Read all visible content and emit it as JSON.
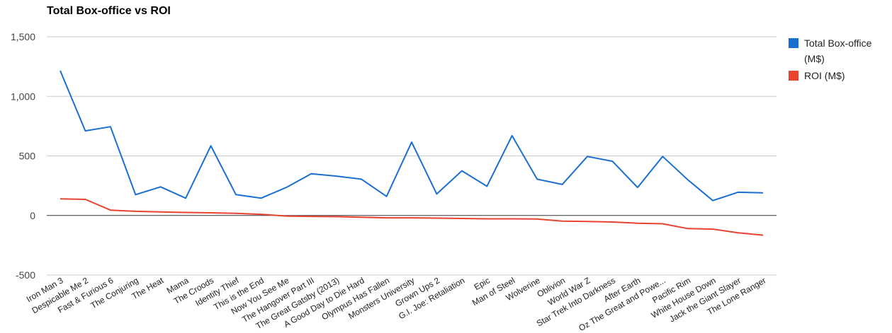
{
  "chart_data": {
    "type": "line",
    "title": "Total Box-office vs ROI",
    "xlabel": "",
    "ylabel": "",
    "ylim": [
      -500,
      1500
    ],
    "yticks": [
      -500,
      0,
      500,
      1000,
      1500
    ],
    "ytick_labels": [
      "-500",
      "0",
      "500",
      "1,000",
      "1,500"
    ],
    "grid": true,
    "legend_position": "right",
    "categories": [
      "Iron Man 3",
      "Despicable Me 2",
      "Fast & Furious 6",
      "The Conjuring",
      "The Heat",
      "Mama",
      "The Croods",
      "Identity Thief",
      "This is the End",
      "Now You See Me",
      "The Hangover Part III",
      "The Great Gatsby (2013)",
      "A Good Day to Die Hard",
      "Olympus Has Fallen",
      "Monsters University",
      "Grown Ups 2",
      "G.I. Joe: Retaliation",
      "Epic",
      "Man of Steel",
      "Wolverine",
      "Oblivion",
      "World War Z",
      "Star Trek Into Darkness",
      "After Earth",
      "Oz The Great and Powe...",
      "Pacific Rim",
      "White House Down",
      "Jack the Giant Slayer",
      "The Lone Ranger"
    ],
    "series": [
      {
        "name": "Total Box-office (M$)",
        "color": "#1a6fd1",
        "values": [
          1215,
          710,
          745,
          175,
          240,
          145,
          585,
          175,
          145,
          235,
          350,
          330,
          305,
          160,
          615,
          180,
          375,
          245,
          670,
          305,
          260,
          495,
          455,
          235,
          495,
          300,
          125,
          195,
          190
        ]
      },
      {
        "name": "ROI (M$)",
        "color": "#e8432f",
        "values": [
          140,
          135,
          45,
          35,
          30,
          25,
          22,
          18,
          10,
          -5,
          -8,
          -10,
          -15,
          -20,
          -20,
          -22,
          -25,
          -28,
          -28,
          -30,
          -48,
          -50,
          -55,
          -65,
          -70,
          -110,
          -115,
          -145,
          -165
        ]
      }
    ]
  }
}
